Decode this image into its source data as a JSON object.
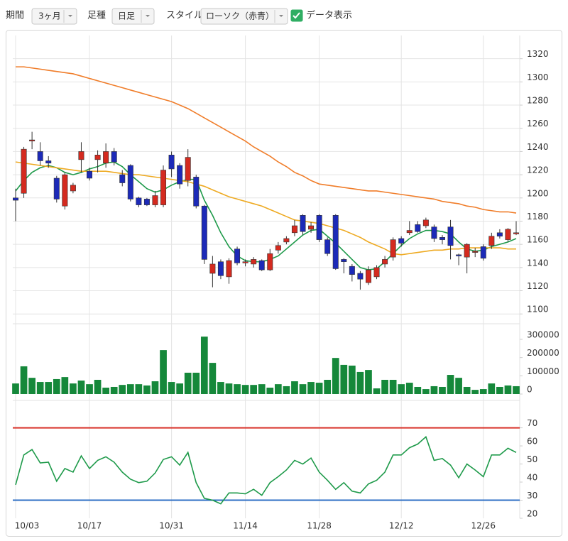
{
  "toolbar": {
    "period_label": "期間",
    "period_value": "3ヶ月",
    "bar_type_label": "足種",
    "bar_type_value": "日足",
    "style_label": "スタイル",
    "style_value": "ローソク（赤青）",
    "show_data_label": "データ表示",
    "show_data": true
  },
  "chart_data": [
    {
      "type": "candlestick",
      "grid": true,
      "up_color": "#d42a1f",
      "down_color": "#1c2ab8",
      "categories": [
        "10/03",
        null,
        null,
        null,
        null,
        null,
        null,
        null,
        null,
        "10/17",
        null,
        null,
        null,
        null,
        null,
        null,
        null,
        null,
        null,
        "10/31",
        null,
        null,
        null,
        null,
        null,
        null,
        null,
        null,
        "11/14",
        null,
        null,
        null,
        null,
        null,
        null,
        null,
        null,
        "11/28",
        null,
        null,
        null,
        null,
        null,
        null,
        null,
        null,
        null,
        "12/12",
        null,
        null,
        null,
        null,
        null,
        null,
        null,
        null,
        null,
        "12/26",
        null,
        null,
        null,
        null
      ],
      "open": [
        1200,
        1204,
        1249,
        1240,
        1232,
        1217,
        1193,
        1206,
        1233,
        1223,
        1233,
        1230,
        1240,
        1220,
        1228,
        1200,
        1199,
        1194,
        1194,
        1237,
        1228,
        1215,
        1218,
        1193,
        1135,
        1145,
        1132,
        1156,
        1144,
        1143,
        1146,
        1138,
        1155,
        1162,
        1170,
        1185,
        1173,
        1185,
        1164,
        1185,
        1147,
        1141,
        1135,
        1127,
        1132,
        1143,
        1149,
        1165,
        1170,
        1177,
        1176,
        1175,
        1166,
        1175,
        1151,
        1149,
        1153,
        1158,
        1159,
        1170,
        1164,
        1169
      ],
      "high": [
        1208,
        1244,
        1257,
        1248,
        1236,
        1219,
        1222,
        1213,
        1248,
        1226,
        1241,
        1247,
        1243,
        1224,
        1229,
        1201,
        1200,
        1206,
        1228,
        1240,
        1230,
        1242,
        1220,
        1194,
        1150,
        1147,
        1148,
        1158,
        1147,
        1149,
        1147,
        1156,
        1162,
        1167,
        1181,
        1186,
        1179,
        1186,
        1166,
        1186,
        1148,
        1143,
        1137,
        1141,
        1142,
        1150,
        1166,
        1167,
        1180,
        1180,
        1183,
        1177,
        1168,
        1181,
        1152,
        1161,
        1157,
        1160,
        1170,
        1173,
        1174,
        1180
      ],
      "low": [
        1180,
        1200,
        1242,
        1228,
        1226,
        1196,
        1190,
        1204,
        1222,
        1215,
        1222,
        1226,
        1228,
        1210,
        1197,
        1192,
        1193,
        1192,
        1192,
        1218,
        1208,
        1210,
        1191,
        1143,
        1123,
        1130,
        1126,
        1142,
        1141,
        1140,
        1137,
        1137,
        1152,
        1160,
        1167,
        1168,
        1170,
        1162,
        1150,
        1138,
        1135,
        1128,
        1121,
        1125,
        1130,
        1140,
        1146,
        1158,
        1168,
        1170,
        1174,
        1162,
        1160,
        1147,
        1142,
        1135,
        1149,
        1146,
        1156,
        1165,
        1162,
        1168
      ],
      "close": [
        1198,
        1242,
        1250,
        1232,
        1230,
        1199,
        1220,
        1211,
        1240,
        1217,
        1237,
        1240,
        1231,
        1213,
        1199,
        1194,
        1194,
        1202,
        1224,
        1225,
        1212,
        1235,
        1193,
        1147,
        1143,
        1133,
        1146,
        1144,
        1145,
        1147,
        1138,
        1152,
        1159,
        1165,
        1176,
        1171,
        1176,
        1164,
        1152,
        1139,
        1145,
        1134,
        1130,
        1138,
        1140,
        1147,
        1164,
        1161,
        1172,
        1171,
        1181,
        1165,
        1164,
        1159,
        1150,
        1160,
        1154,
        1148,
        1167,
        1167,
        1173,
        1170
      ],
      "lines": [
        {
          "color": "#1e9a4a",
          "values": [
            1206,
            1215,
            1222,
            1226,
            1228,
            1226,
            1222,
            1220,
            1222,
            1225,
            1227,
            1230,
            1231,
            1227,
            1220,
            1214,
            1208,
            1205,
            1207,
            1211,
            1214,
            1216,
            1216,
            1198,
            1185,
            1170,
            1158,
            1150,
            1146,
            1145,
            1145,
            1147,
            1150,
            1156,
            1162,
            1168,
            1172,
            1173,
            1167,
            1161,
            1154,
            1147,
            1140,
            1138,
            1139,
            1145,
            1152,
            1159,
            1165,
            1169,
            1172,
            1172,
            1171,
            1169,
            1162,
            1156,
            1154,
            1155,
            1158,
            1160,
            1162,
            1165
          ]
        },
        {
          "color": "#eeaa22",
          "values": [
            1231,
            1230,
            1229,
            1228,
            1227,
            1226,
            1225,
            1224,
            1223,
            1223,
            1223,
            1223,
            1222,
            1221,
            1220,
            1220,
            1219,
            1218,
            1217,
            1216,
            1215,
            1214,
            1212,
            1210,
            1207,
            1204,
            1201,
            1199,
            1197,
            1195,
            1193,
            1190,
            1187,
            1184,
            1181,
            1180,
            1179,
            1178,
            1176,
            1174,
            1172,
            1169,
            1166,
            1162,
            1159,
            1156,
            1152,
            1151,
            1152,
            1153,
            1154,
            1155,
            1155,
            1156,
            1156,
            1157,
            1157,
            1157,
            1157,
            1157,
            1156,
            1156
          ]
        },
        {
          "color": "#f07d2a",
          "values": [
            1313,
            1313,
            1312,
            1311,
            1310,
            1309,
            1308,
            1307,
            1305,
            1303,
            1301,
            1299,
            1297,
            1295,
            1293,
            1291,
            1289,
            1287,
            1285,
            1283,
            1280,
            1277,
            1273,
            1269,
            1265,
            1261,
            1257,
            1253,
            1249,
            1244,
            1240,
            1236,
            1231,
            1227,
            1222,
            1219,
            1215,
            1212,
            1211,
            1210,
            1209,
            1208,
            1207,
            1206,
            1206,
            1205,
            1204,
            1203,
            1202,
            1201,
            1200,
            1199,
            1197,
            1196,
            1195,
            1193,
            1192,
            1190,
            1189,
            1188,
            1188,
            1187
          ]
        }
      ],
      "ylim": [
        1094,
        1340
      ],
      "yticks": [
        1100,
        1120,
        1140,
        1160,
        1180,
        1200,
        1220,
        1240,
        1260,
        1280,
        1300,
        1320
      ]
    },
    {
      "type": "bar",
      "color": "#15883a",
      "grid": false,
      "values": [
        58000,
        152000,
        89000,
        66000,
        66000,
        82000,
        93000,
        58000,
        74000,
        54000,
        78000,
        35000,
        39000,
        50000,
        54000,
        54000,
        47000,
        70000,
        241000,
        66000,
        58000,
        117000,
        117000,
        315000,
        171000,
        66000,
        58000,
        54000,
        50000,
        50000,
        54000,
        35000,
        54000,
        43000,
        70000,
        54000,
        66000,
        62000,
        78000,
        198000,
        160000,
        156000,
        121000,
        132000,
        31000,
        78000,
        78000,
        54000,
        62000,
        39000,
        27000,
        43000,
        39000,
        105000,
        89000,
        39000,
        23000,
        27000,
        58000,
        39000,
        47000,
        43000
      ],
      "ylim": [
        0,
        370000
      ],
      "yticks": [
        0,
        100000,
        200000,
        300000
      ]
    },
    {
      "type": "line",
      "color": "#1e9a4a",
      "grid": false,
      "values": [
        38.5,
        55,
        58,
        50.6,
        51,
        40.5,
        47.5,
        45.5,
        54.5,
        47.5,
        52,
        54,
        51,
        45.5,
        41.6,
        39.7,
        40.5,
        45,
        52.5,
        54,
        49.4,
        56.4,
        39.7,
        31,
        30,
        28,
        34,
        34,
        33.5,
        36,
        32.7,
        39.7,
        43,
        46.7,
        52,
        50,
        53.3,
        45.5,
        41,
        36,
        39.7,
        35,
        34,
        39,
        41,
        45.5,
        55,
        55,
        59,
        61,
        65,
        52,
        53,
        49.4,
        42.4,
        50,
        46.7,
        43,
        55,
        55,
        58.7,
        56.4
      ],
      "reference_lines": [
        {
          "value": 70,
          "color": "#d9342b"
        },
        {
          "value": 30,
          "color": "#2f6fc4"
        }
      ],
      "ylim": [
        20,
        82
      ],
      "yticks": [
        20,
        30,
        40,
        50,
        60,
        70
      ]
    }
  ]
}
